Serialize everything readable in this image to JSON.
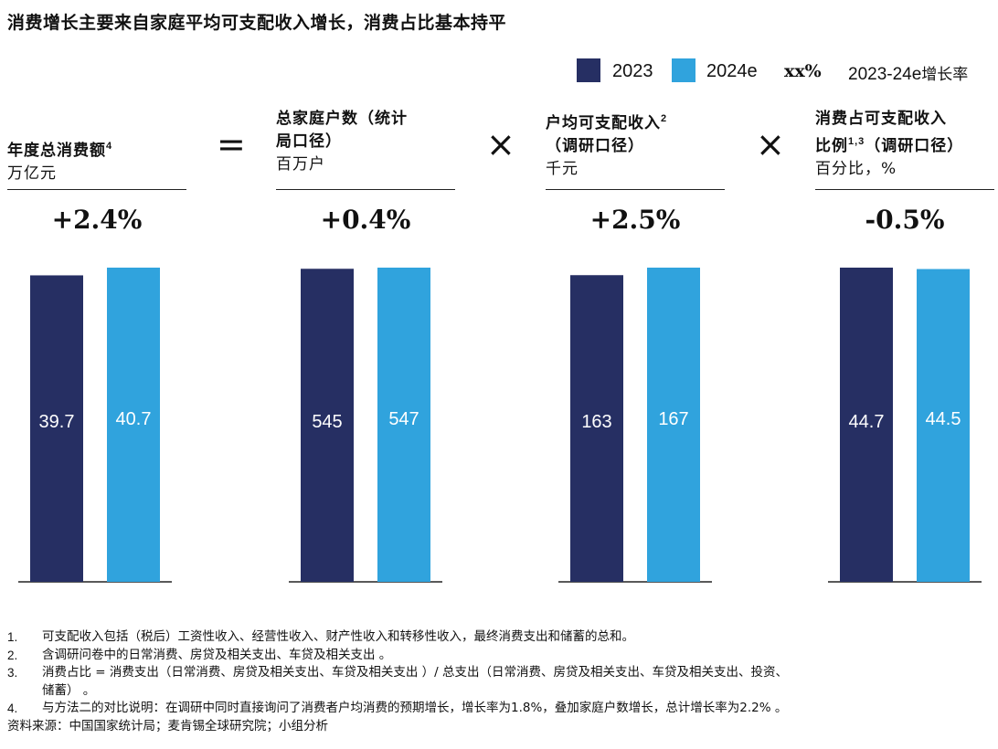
{
  "title": "消费增长主要来自家庭平均可支配收入增长，消费占比基本持平",
  "legend": {
    "series_2023": "2023",
    "series_2024e": "2024e",
    "growth_symbol": "xx%",
    "growth_label": "2023-24e",
    "growth_label_cn": "增长率"
  },
  "colors": {
    "series_2023": "#262f63",
    "series_2024e": "#30a3dd"
  },
  "operators": {
    "equals": "=",
    "times": "×"
  },
  "panels": [
    {
      "title_line1": "年度总消费额",
      "title_sup": "4",
      "title_line2": "",
      "unit": "万亿元",
      "growth": "+2.4%"
    },
    {
      "title_line1": "总家庭户数（统计",
      "title_sup": "",
      "title_line2": "局口径）",
      "unit": "百万户",
      "growth": "+0.4%"
    },
    {
      "title_line1": "户均可支配收入",
      "title_sup": "2",
      "title_line2": "（调研口径）",
      "unit": "千元",
      "growth": "+2.5%"
    },
    {
      "title_line1": "消费占可支配收入",
      "title_sup": "",
      "title_line2": "比例",
      "title_line2_sup": "1,3",
      "title_line2_rest": "（调研口径）",
      "unit": "百分比，%",
      "growth": "-0.5%"
    }
  ],
  "chart_data": [
    {
      "type": "bar",
      "title": "年度总消费额",
      "ylabel": "万亿元",
      "categories": [
        "2023",
        "2024e"
      ],
      "values": [
        39.7,
        40.7
      ],
      "labels": [
        "39.7",
        "40.7"
      ],
      "ylim": [
        0,
        40.7
      ]
    },
    {
      "type": "bar",
      "title": "总家庭户数（统计局口径）",
      "ylabel": "百万户",
      "categories": [
        "2023",
        "2024e"
      ],
      "values": [
        545,
        547
      ],
      "labels": [
        "545",
        "547"
      ],
      "ylim": [
        0,
        547
      ]
    },
    {
      "type": "bar",
      "title": "户均可支配收入（调研口径）",
      "ylabel": "千元",
      "categories": [
        "2023",
        "2024e"
      ],
      "values": [
        163,
        167
      ],
      "labels": [
        "163",
        "167"
      ],
      "ylim": [
        0,
        167
      ]
    },
    {
      "type": "bar",
      "title": "消费占可支配收入比例（调研口径）",
      "ylabel": "百分比，%",
      "categories": [
        "2023",
        "2024e"
      ],
      "values": [
        44.7,
        44.5
      ],
      "labels": [
        "44.7",
        "44.5"
      ],
      "ylim": [
        0,
        44.7
      ]
    }
  ],
  "notes": [
    {
      "num": "1.",
      "text": "可支配收入包括（税后）工资性收入、经营性收入、财产性收入和转移性收入，最终消费支出和储蓄的总和。"
    },
    {
      "num": "2.",
      "text": "含调研问卷中的日常消费、房贷及相关支出、车贷及相关支出 。"
    },
    {
      "num": "3.",
      "text": "消费占比 = 消费支出（日常消费、房贷及相关支出、车贷及相关支出 ）/ 总支出（日常消费、房贷及相关支出、车贷及相关支出、投资、",
      "text2": "储蓄）  。"
    },
    {
      "num": "4.",
      "text": "与方法二的对比说明：在调研中同时直接询问了消费者户均消费的预期增长，增长率为1.8%，叠加家庭户数增长，总计增长率为2.2% 。"
    }
  ],
  "source": "资料来源：中国国家统计局；麦肯锡全球研究院；小组分析"
}
